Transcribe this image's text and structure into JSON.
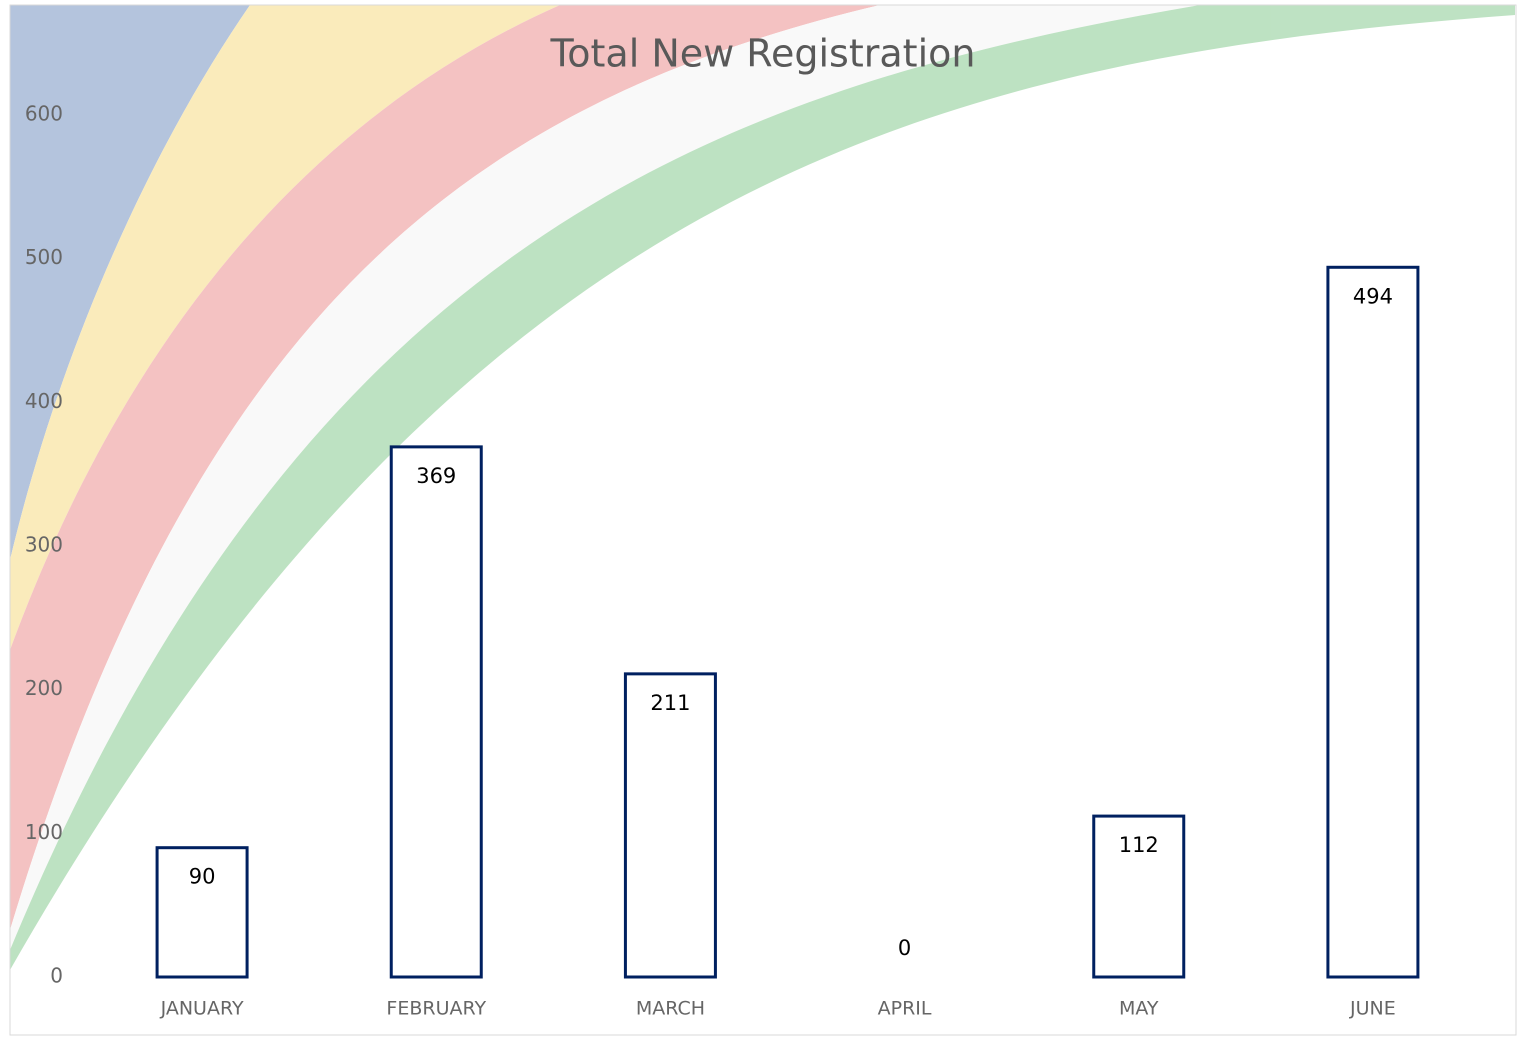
{
  "chart_data": {
    "type": "bar",
    "title": "Total New Registration",
    "categories": [
      "JANUARY",
      "FEBRUARY",
      "MARCH",
      "APRIL",
      "MAY",
      "JUNE"
    ],
    "values": [
      90,
      369,
      211,
      0,
      112,
      494
    ],
    "color": "#002060",
    "ylim": [
      0,
      600
    ],
    "yticks": [
      0,
      100,
      200,
      300,
      400,
      500,
      600
    ],
    "grid": false
  }
}
